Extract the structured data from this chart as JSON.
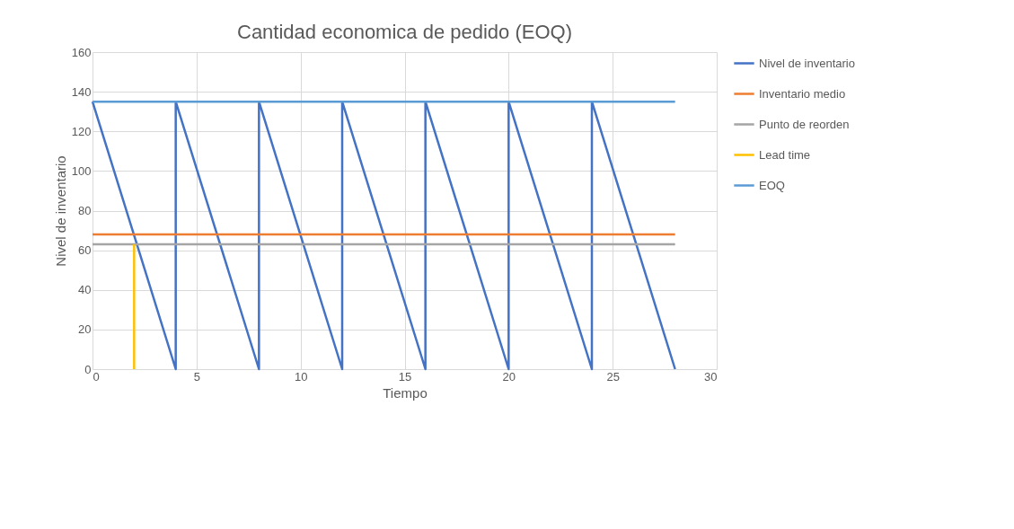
{
  "chart_data": {
    "type": "line",
    "title": "Cantidad economica de pedido (EOQ)",
    "xlabel": "Tiempo",
    "ylabel": "Nivel de inventario",
    "xlim": [
      0,
      30
    ],
    "xticks": [
      0,
      5,
      10,
      15,
      20,
      25,
      30
    ],
    "ylim": [
      0,
      160
    ],
    "yticks": [
      0,
      20,
      40,
      60,
      80,
      100,
      120,
      140,
      160
    ],
    "grid": true,
    "legend": "right",
    "marker": "none",
    "line_style": "solid",
    "series": [
      {
        "name": "Nivel de inventario",
        "color": "#4472c4",
        "x": [
          0,
          4,
          4,
          8,
          8,
          12,
          12,
          16,
          16,
          20,
          20,
          24,
          24,
          28
        ],
        "values": [
          135,
          0,
          135,
          0,
          135,
          0,
          135,
          0,
          135,
          0,
          135,
          0,
          135,
          0
        ]
      },
      {
        "name": "Inventario medio",
        "color": "#ed7d31",
        "x": [
          0,
          28
        ],
        "values": [
          68,
          68
        ]
      },
      {
        "name": "Punto de reorden",
        "color": "#a5a5a5",
        "x": [
          0,
          28
        ],
        "values": [
          63,
          63
        ]
      },
      {
        "name": "Lead time",
        "color": "#ffc000",
        "x": [
          2,
          2
        ],
        "values": [
          0,
          63
        ]
      },
      {
        "name": "EOQ",
        "color": "#5b9bd5",
        "x": [
          0,
          28
        ],
        "values": [
          135,
          135
        ]
      }
    ]
  }
}
